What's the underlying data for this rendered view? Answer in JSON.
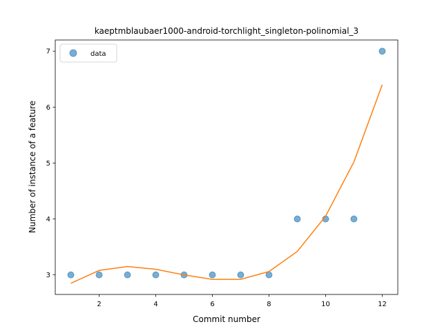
{
  "chart_data": {
    "type": "scatter",
    "title": "kaeptmblaubaer1000-android-torchlight_singleton-polinomial_3",
    "xlabel": "Commit number",
    "ylabel": "Number of instance of a feature",
    "xlim": [
      0.45,
      12.55
    ],
    "ylim": [
      2.65,
      7.2
    ],
    "xticks": [
      2,
      4,
      6,
      8,
      10,
      12
    ],
    "yticks": [
      3,
      4,
      5,
      6,
      7
    ],
    "grid": false,
    "legend_position": "upper-left",
    "series": [
      {
        "name": "data",
        "kind": "scatter",
        "color": "#1f77b4",
        "x": [
          1,
          2,
          3,
          4,
          5,
          6,
          7,
          8,
          9,
          10,
          11,
          12
        ],
        "y": [
          3,
          3,
          3,
          3,
          3,
          3,
          3,
          3,
          4,
          4,
          4,
          7
        ]
      },
      {
        "kind": "line",
        "color": "#ff7f0e",
        "x": [
          1,
          2,
          3,
          4,
          5,
          6,
          7,
          8,
          9,
          10,
          11,
          12
        ],
        "y": [
          2.85,
          3.08,
          3.15,
          3.1,
          3.0,
          2.92,
          2.92,
          3.06,
          3.42,
          4.05,
          5.02,
          6.4
        ]
      }
    ]
  }
}
